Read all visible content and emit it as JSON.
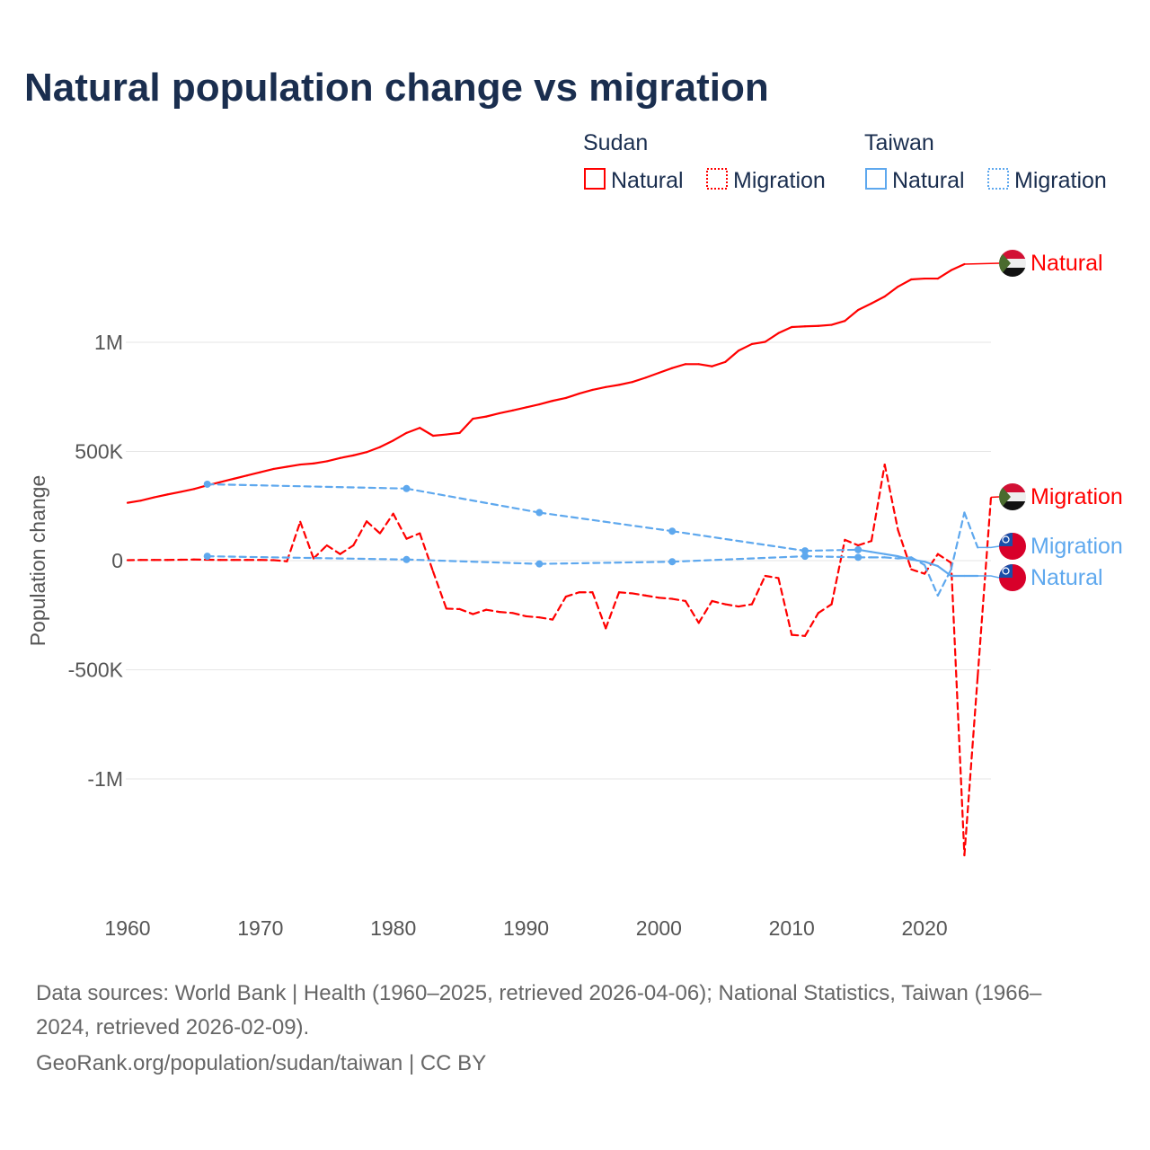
{
  "title": "Natural population change vs migration",
  "legend": {
    "groups": [
      {
        "name": "Sudan",
        "items": [
          {
            "label": "Natural",
            "style": "solid"
          },
          {
            "label": "Migration",
            "style": "dotted"
          }
        ],
        "color": "#ff0000"
      },
      {
        "name": "Taiwan",
        "items": [
          {
            "label": "Natural",
            "style": "solid"
          },
          {
            "label": "Migration",
            "style": "dotted"
          }
        ],
        "color": "#5ea8ee"
      }
    ]
  },
  "end_labels": {
    "sudan_natural": "Natural",
    "sudan_migration": "Migration",
    "taiwan_migration": "Migration",
    "taiwan_natural": "Natural"
  },
  "footer": {
    "sources_line1": "Data sources: World Bank | Health (1960–2025, retrieved 2026-04-06); National Statistics, Taiwan (1966–",
    "sources_line2": "2024, retrieved 2026-02-09).",
    "credit": "GeoRank.org/population/sudan/taiwan | CC BY"
  },
  "chart_data": {
    "type": "line",
    "title": "Natural population change vs migration",
    "xlabel": "",
    "ylabel": "Population change",
    "xlim": [
      1960,
      2025
    ],
    "ylim": [
      -1400000,
      1400000
    ],
    "x_ticks": [
      1960,
      1970,
      1980,
      1990,
      2000,
      2010,
      2020
    ],
    "x_tick_labels": [
      "1960",
      "1970",
      "1980",
      "1990",
      "2000",
      "2010",
      "2020"
    ],
    "y_ticks": [
      1000000,
      500000,
      0,
      -500000,
      -1000000
    ],
    "y_tick_labels": [
      "1M",
      "500K",
      "0",
      "-500K",
      "-1M"
    ],
    "grid": true,
    "legend_placement": "top-right",
    "series": [
      {
        "name": "Sudan Natural",
        "country": "Sudan",
        "kind": "natural",
        "color": "#ff0000",
        "dash": "solid",
        "x": [
          1960,
          1961,
          1962,
          1963,
          1964,
          1965,
          1966,
          1967,
          1968,
          1969,
          1970,
          1971,
          1972,
          1973,
          1974,
          1975,
          1976,
          1977,
          1978,
          1979,
          1980,
          1981,
          1982,
          1983,
          1984,
          1985,
          1986,
          1987,
          1988,
          1989,
          1990,
          1991,
          1992,
          1993,
          1994,
          1995,
          1996,
          1997,
          1998,
          1999,
          2000,
          2001,
          2002,
          2003,
          2004,
          2005,
          2006,
          2007,
          2008,
          2009,
          2010,
          2011,
          2012,
          2013,
          2014,
          2015,
          2016,
          2017,
          2018,
          2019,
          2020,
          2021,
          2022,
          2023
        ],
        "values": [
          265000,
          275000,
          290000,
          303000,
          315000,
          328000,
          345000,
          360000,
          375000,
          390000,
          405000,
          420000,
          430000,
          440000,
          445000,
          455000,
          470000,
          482000,
          497000,
          520000,
          550000,
          585000,
          608000,
          572000,
          578000,
          585000,
          650000,
          660000,
          675000,
          688000,
          702000,
          716000,
          732000,
          745000,
          765000,
          782000,
          795000,
          805000,
          818000,
          838000,
          860000,
          882000,
          900000,
          900000,
          890000,
          910000,
          962000,
          992000,
          1002000,
          1042000,
          1070000,
          1073000,
          1075000,
          1080000,
          1098000,
          1148000,
          1178000,
          1210000,
          1255000,
          1288000,
          1292000,
          1292000,
          1330000,
          1358000
        ]
      },
      {
        "name": "Sudan Migration",
        "country": "Sudan",
        "kind": "migration",
        "color": "#ff0000",
        "dash": "dashed",
        "x": [
          1960,
          1961,
          1962,
          1963,
          1964,
          1965,
          1966,
          1967,
          1968,
          1969,
          1970,
          1971,
          1972,
          1973,
          1974,
          1975,
          1976,
          1977,
          1978,
          1979,
          1980,
          1981,
          1982,
          1983,
          1984,
          1985,
          1986,
          1987,
          1988,
          1989,
          1990,
          1991,
          1992,
          1993,
          1994,
          1995,
          1996,
          1997,
          1998,
          1999,
          2000,
          2001,
          2002,
          2003,
          2004,
          2005,
          2006,
          2007,
          2008,
          2009,
          2010,
          2011,
          2012,
          2013,
          2014,
          2015,
          2016,
          2017,
          2018,
          2019,
          2020,
          2021,
          2022,
          2023,
          2024,
          2025
        ],
        "values": [
          2000,
          3000,
          3000,
          3000,
          4000,
          5000,
          4000,
          3000,
          3000,
          3000,
          3000,
          2000,
          -3000,
          178000,
          10000,
          70000,
          30000,
          70000,
          180000,
          125000,
          215000,
          100000,
          125000,
          -50000,
          -220000,
          -222000,
          -245000,
          -225000,
          -235000,
          -240000,
          -255000,
          -260000,
          -270000,
          -165000,
          -145000,
          -145000,
          -310000,
          -145000,
          -150000,
          -160000,
          -170000,
          -175000,
          -185000,
          -285000,
          -185000,
          -200000,
          -210000,
          -200000,
          -70000,
          -80000,
          -340000,
          -345000,
          -240000,
          -200000,
          95000,
          70000,
          90000,
          440000,
          140000,
          -40000,
          -60000,
          30000,
          -10000,
          -1350000,
          -530000,
          290000
        ]
      },
      {
        "name": "Taiwan Natural",
        "country": "Taiwan",
        "kind": "natural",
        "color": "#5ea8ee",
        "dash": "solid",
        "x": [
          1966,
          1981,
          1991,
          2001,
          2011,
          2015,
          2016,
          2017,
          2018,
          2019,
          2020,
          2021,
          2022,
          2023,
          2024
        ],
        "values": [
          350000,
          330000,
          220000,
          135000,
          45000,
          50000,
          40000,
          30000,
          20000,
          5000,
          -5000,
          -25000,
          -70000,
          -70000,
          -70000
        ]
      },
      {
        "name": "Taiwan Migration",
        "country": "Taiwan",
        "kind": "migration",
        "color": "#5ea8ee",
        "dash": "dashed",
        "x": [
          1966,
          1981,
          1991,
          2001,
          2011,
          2015,
          2016,
          2017,
          2018,
          2019,
          2020,
          2021,
          2022,
          2023,
          2024
        ],
        "values": [
          20000,
          5000,
          -15000,
          -5000,
          20000,
          15000,
          15000,
          15000,
          10000,
          15000,
          -20000,
          -160000,
          -40000,
          220000,
          60000
        ]
      }
    ]
  }
}
